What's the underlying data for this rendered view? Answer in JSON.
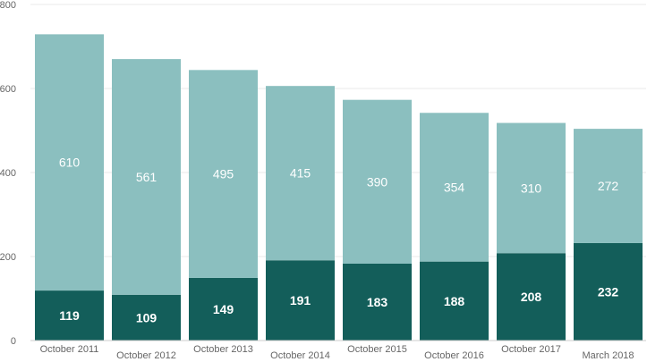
{
  "chart_data": {
    "type": "bar",
    "stacked": true,
    "title": "",
    "xlabel": "",
    "ylabel": "",
    "ylim": [
      0,
      800
    ],
    "yticks": [
      0,
      200,
      400,
      600,
      800
    ],
    "grid": true,
    "categories": [
      "October 2011",
      "October 2012",
      "October 2013",
      "October 2014",
      "October 2015",
      "October 2016",
      "October 2017",
      "March 2018"
    ],
    "series": [
      {
        "values": [
          119,
          109,
          149,
          191,
          183,
          188,
          208,
          232
        ],
        "color": "#135e5a"
      },
      {
        "values": [
          610,
          561,
          495,
          415,
          390,
          354,
          310,
          272
        ],
        "color": "#8bbfbf"
      }
    ],
    "gridline_color": "#e8e8e8",
    "axis_label_color": "#666666"
  }
}
